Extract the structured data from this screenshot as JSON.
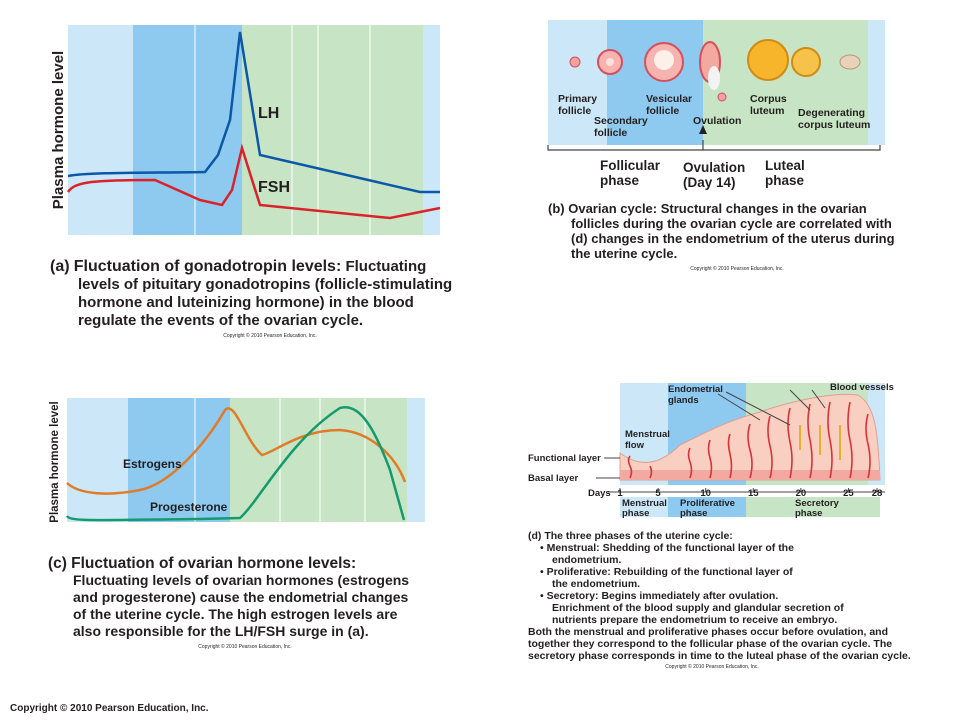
{
  "panel_a": {
    "y_axis_label": "Plasma hormone level",
    "lh_label": "LH",
    "fsh_label": "FSH",
    "caption": {
      "label": "(a)",
      "title": "Fluctuation of gonadotropin levels:",
      "lines": [
        "Fluctuating",
        "levels of pituitary gonadotropins (follicle-stimulating",
        "hormone and luteinizing hormone) in the blood",
        "regulate the events of the ovarian cycle."
      ]
    },
    "copyright": "Copyright © 2010 Pearson Education, Inc."
  },
  "panel_b": {
    "structures": [
      [
        "Primary",
        "follicle"
      ],
      [
        "Secondary",
        "follicle"
      ],
      [
        "Vesicular",
        "follicle"
      ],
      [
        "Ovulation"
      ],
      [
        "Corpus",
        "luteum"
      ],
      [
        "Degenerating",
        "corpus luteum"
      ]
    ],
    "phases": [
      [
        "Follicular",
        "phase"
      ],
      [
        "Ovulation",
        "(Day 14)"
      ],
      [
        "Luteal",
        "phase"
      ]
    ],
    "caption": {
      "label": "(b)",
      "title": "Ovarian cycle:",
      "lines": [
        "Structural changes in the ovarian",
        "follicles during the ovarian cycle are correlated with",
        "(d) changes in the endometrium of the uterus during",
        "the uterine cycle."
      ]
    },
    "copyright": "Copyright © 2010 Pearson Education, Inc."
  },
  "panel_c": {
    "y_axis_label": "Plasma hormone level",
    "estrogen_label": "Estrogens",
    "progesterone_label": "Progesterone",
    "caption": {
      "label": "(c)",
      "title": "Fluctuation of ovarian hormone levels:",
      "lines": [
        "Fluctuating levels of ovarian hormones (estrogens",
        "and progesterone) cause the endometrial changes",
        "of the uterine cycle. The high estrogen levels are",
        "also responsible for the LH/FSH surge in (a)."
      ]
    },
    "copyright": "Copyright © 2010 Pearson Education, Inc."
  },
  "panel_d": {
    "labels": {
      "glands": [
        "Endometrial",
        "glands"
      ],
      "vessels": "Blood vessels",
      "flow": [
        "Menstrual",
        "flow"
      ],
      "functional": "Functional layer",
      "basal": "Basal layer",
      "days": "Days"
    },
    "days": [
      1,
      5,
      10,
      15,
      20,
      25,
      28
    ],
    "phases": [
      [
        "Menstrual",
        "phase"
      ],
      [
        "Proliferative",
        "phase"
      ],
      [
        "Secretory",
        "phase"
      ]
    ],
    "caption": {
      "title": "(d) The three phases of the uterine cycle:",
      "lines": [
        "• Menstrual: Shedding of the functional layer of the",
        "endometrium.",
        "• Proliferative: Rebuilding of the functional layer of",
        "the endometrium.",
        "• Secretory: Begins immediately after ovulation.",
        "Enrichment of the blood supply and glandular secretion of",
        "nutrients prepare the endometrium to receive an embryo.",
        "Both the menstrual and proliferative phases occur before ovulation, and",
        "together they correspond to the follicular phase of the ovarian cycle. The",
        "secretory phase corresponds in time to the luteal phase of the ovarian cycle."
      ]
    },
    "copyright": "Copyright © 2010 Pearson Education, Inc."
  },
  "footer": "Copyright © 2010 Pearson Education, Inc."
}
